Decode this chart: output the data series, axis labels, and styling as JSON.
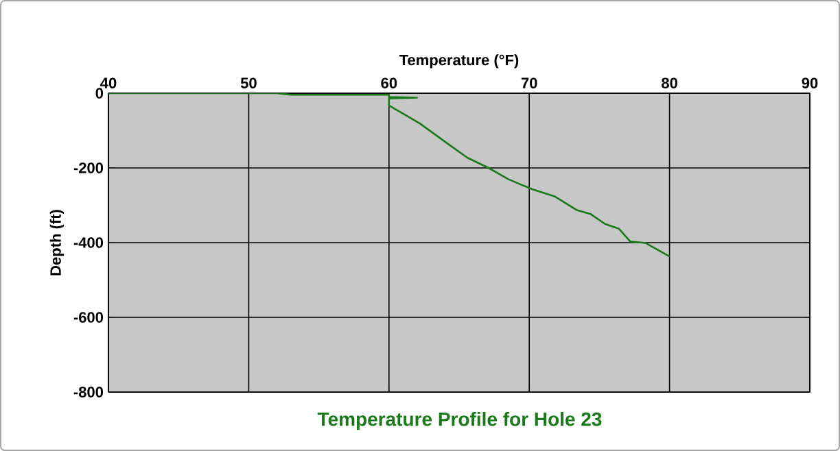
{
  "chart_data": {
    "type": "line",
    "title": "Temperature Profile for Hole 23",
    "xlabel": "Temperature (°F)",
    "ylabel": "Depth (ft)",
    "xlim": [
      40,
      90
    ],
    "xticks": [
      40,
      50,
      60,
      70,
      80,
      90
    ],
    "ylim": [
      -800,
      0
    ],
    "yticks": [
      -800,
      -600,
      -400,
      -200,
      0
    ],
    "grid": true,
    "series": [
      {
        "color": "#1a7a1a",
        "x": [
          40,
          52,
          53,
          60,
          60,
          62,
          60,
          60,
          61.7,
          62.2,
          64,
          65.6,
          67.1,
          68.5,
          70.2,
          71.8,
          73.4,
          74.4,
          75.4,
          76.4,
          77.2,
          78.3,
          80
        ],
        "values": [
          0,
          0,
          -4,
          -4,
          -10,
          -12,
          -14,
          -33,
          -70,
          -81,
          -130,
          -173,
          -200,
          -230,
          -257,
          -276,
          -313,
          -324,
          -350,
          -363,
          -397,
          -401,
          -437
        ]
      }
    ]
  }
}
